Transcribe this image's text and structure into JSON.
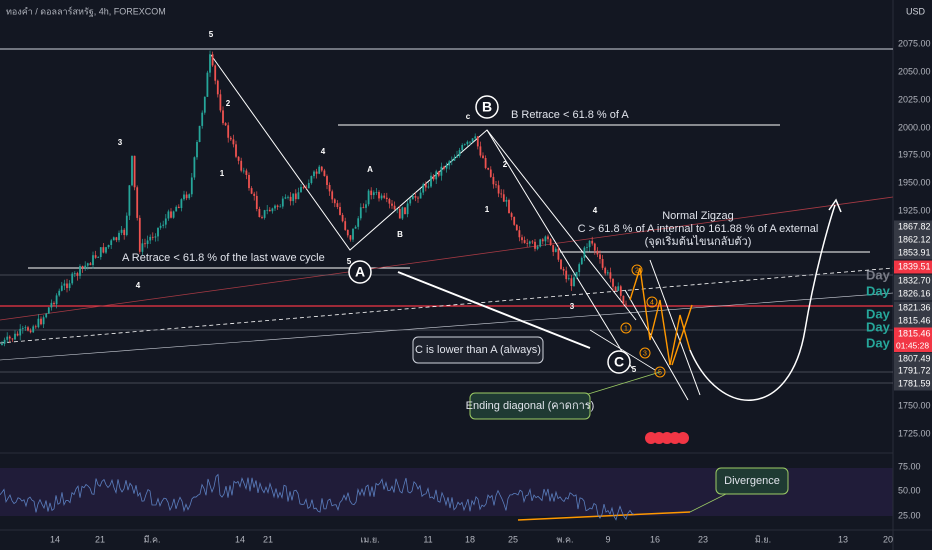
{
  "header": {
    "symbol": "ทองคำ / ดอลลาร์สหรัฐ, 4h, FOREXCOM",
    "currency": "USD"
  },
  "price_axis": [
    "2075.00",
    "2050.00",
    "2025.00",
    "2000.00",
    "1975.00",
    "1950.00",
    "1925.00",
    "1750.00",
    "1725.00"
  ],
  "price_labels": [
    "1867.82",
    "1862.12",
    "1853.91",
    "1839.51",
    "1832.70",
    "1826.16",
    "1821.36",
    "1815.46",
    "1815.46",
    "1807.49",
    "1791.72",
    "1781.59"
  ],
  "countdown": "01:45:28",
  "day_labels": [
    "Day",
    "Day",
    "Day",
    "Day",
    "Day"
  ],
  "rsi_axis": [
    "75.00",
    "50.00",
    "25.00"
  ],
  "time_axis": [
    "14",
    "21",
    "มี.ค.",
    "14",
    "21",
    "เม.ย.",
    "11",
    "18",
    "25",
    "พ.ค.",
    "9",
    "16",
    "23",
    "มิ.ย.",
    "13",
    "20"
  ],
  "annotations": {
    "b_retrace": "B Retrace < 61.8 % of A",
    "zigzag_title": "Normal Zigzag",
    "zigzag_rule": "C > 61.8 % of A internal to 161.88 % of A external",
    "zigzag_note": "(จุดเริ่มต้นไขนกลับตัว)",
    "a_retrace": "A Retrace < 61.8 % of the last wave cycle",
    "c_lower": "C is lower than A (always)",
    "ending_diagonal": "Ending diagonal (คาดการ)",
    "divergence": "Divergence"
  },
  "big_circles": [
    "A",
    "B",
    "C"
  ],
  "wave_labels": [
    "5",
    "3",
    "4",
    "2",
    "1",
    "4",
    "A",
    "B",
    "5",
    "c",
    "2",
    "1",
    "4",
    "3",
    "5"
  ],
  "circled_waves": [
    "2",
    "4",
    "1",
    "3",
    "5"
  ]
}
